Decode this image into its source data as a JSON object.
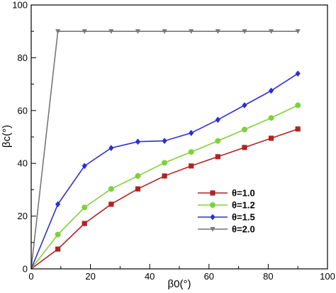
{
  "chart_data": {
    "type": "line",
    "xlabel": "β0(°)",
    "ylabel": "βc(°)",
    "xlim": [
      0,
      100
    ],
    "ylim": [
      0,
      100
    ],
    "xticks": [
      "0",
      "20",
      "40",
      "60",
      "80",
      "100"
    ],
    "yticks": [
      "0",
      "20",
      "40",
      "60",
      "80",
      "100"
    ],
    "grid": false,
    "legend_position": "lower-right",
    "x": [
      0,
      9,
      18,
      27,
      36,
      45,
      54,
      63,
      72,
      81,
      90
    ],
    "series": [
      {
        "name": "θ=1.0",
        "color": "#b22222",
        "marker": "square",
        "values": [
          0,
          7.5,
          17.2,
          24.5,
          30.3,
          35.2,
          39.0,
          42.5,
          46.0,
          49.5,
          53.0
        ]
      },
      {
        "name": "θ=1.2",
        "color": "#7fd13b",
        "marker": "circle",
        "values": [
          0,
          13.0,
          23.3,
          30.3,
          35.2,
          40.2,
          44.3,
          48.5,
          52.8,
          57.2,
          62.0
        ]
      },
      {
        "name": "θ=1.5",
        "color": "#2d2dd8",
        "marker": "diamond",
        "values": [
          0,
          24.5,
          39.0,
          45.8,
          48.2,
          48.5,
          51.5,
          56.5,
          62.0,
          67.5,
          74.0
        ]
      },
      {
        "name": "θ=2.0",
        "color": "#777777",
        "marker": "triangle-down",
        "values": [
          0,
          90,
          90,
          90,
          90,
          90,
          90,
          90,
          90,
          90,
          90
        ]
      }
    ]
  }
}
